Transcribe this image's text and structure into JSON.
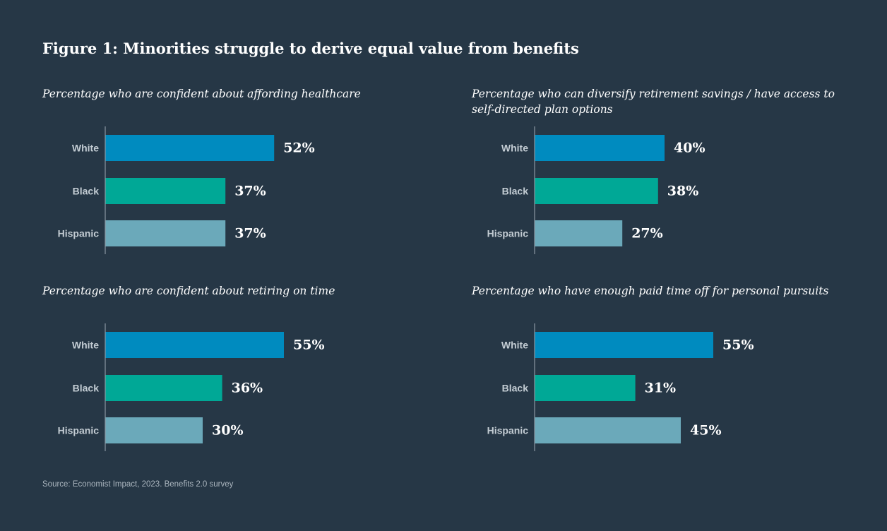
{
  "title": "Figure 1: Minorities struggle to derive equal value from benefits",
  "source": "Source: Economist Impact, 2023. Benefits 2.0 survey",
  "colors": {
    "background": "#263746",
    "white": "#008bbf",
    "black": "#00a896",
    "hispanic": "#6ba9ba",
    "axis": "#8b97a2"
  },
  "chart_data": [
    {
      "type": "bar",
      "orientation": "horizontal",
      "title": "Percentage who are confident about affording healthcare",
      "categories": [
        "White",
        "Black",
        "Hispanic"
      ],
      "values": [
        52,
        37,
        37
      ],
      "labels": [
        "52%",
        "37%",
        "37%"
      ],
      "xlim": [
        0,
        100
      ]
    },
    {
      "type": "bar",
      "orientation": "horizontal",
      "title": "Percentage who can diversify retirement savings / have access to self-directed plan options",
      "categories": [
        "White",
        "Black",
        "Hispanic"
      ],
      "values": [
        40,
        38,
        27
      ],
      "labels": [
        "40%",
        "38%",
        "27%"
      ],
      "xlim": [
        0,
        100
      ]
    },
    {
      "type": "bar",
      "orientation": "horizontal",
      "title": "Percentage who are confident about retiring on time",
      "categories": [
        "White",
        "Black",
        "Hispanic"
      ],
      "values": [
        55,
        36,
        30
      ],
      "labels": [
        "55%",
        "36%",
        "30%"
      ],
      "xlim": [
        0,
        100
      ]
    },
    {
      "type": "bar",
      "orientation": "horizontal",
      "title": "Percentage who have enough paid time off for personal pursuits",
      "categories": [
        "White",
        "Black",
        "Hispanic"
      ],
      "values": [
        55,
        31,
        45
      ],
      "labels": [
        "55%",
        "31%",
        "45%"
      ],
      "xlim": [
        0,
        100
      ]
    }
  ]
}
